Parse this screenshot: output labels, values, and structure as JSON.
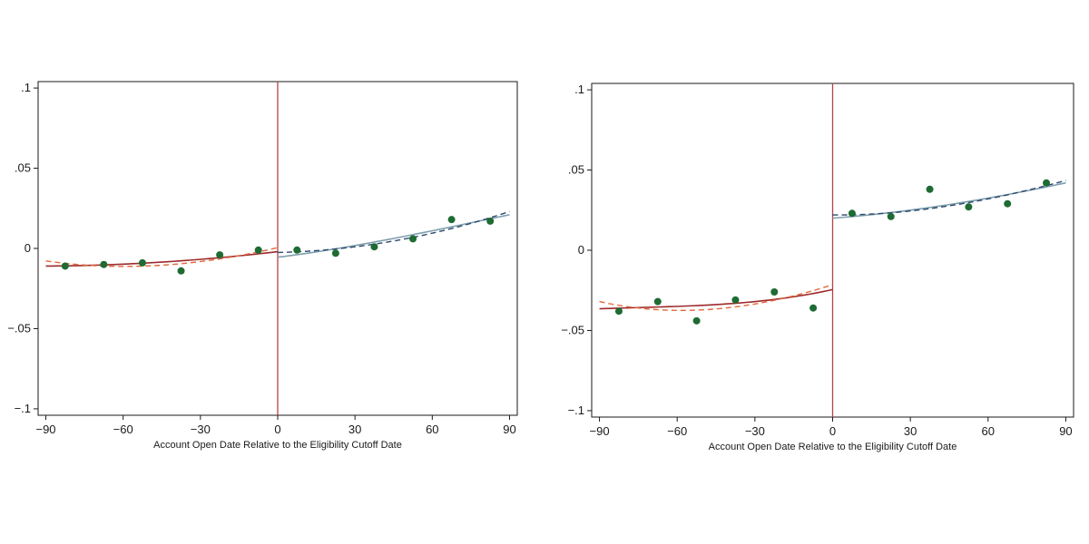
{
  "chart_data": [
    {
      "type": "scatter",
      "title": "",
      "xlabel": "Account Open Date Relative to the Eligibility Cutoff Date",
      "ylabel": "",
      "xlim": [
        -93,
        93
      ],
      "ylim": [
        -0.104,
        0.104
      ],
      "x_ticks": [
        -90,
        -60,
        -30,
        0,
        30,
        60,
        90
      ],
      "x_tick_labels": [
        "−90",
        "−60",
        "−30",
        "0",
        "30",
        "60",
        "90"
      ],
      "y_ticks": [
        0.1,
        0.05,
        0,
        -0.05,
        -0.1
      ],
      "y_tick_labels": [
        ".1",
        ".05",
        "0",
        "−.05",
        "−.1"
      ],
      "grid": false,
      "cutoff_x": 0,
      "points": {
        "x": [
          -82.5,
          -67.5,
          -52.5,
          -37.5,
          -22.5,
          -7.5,
          7.5,
          22.5,
          37.5,
          52.5,
          67.5,
          82.5
        ],
        "y": [
          -0.011,
          -0.01,
          -0.009,
          -0.014,
          -0.004,
          -0.001,
          -0.001,
          -0.003,
          0.001,
          0.006,
          0.018,
          0.017
        ]
      },
      "fits": [
        {
          "side": "left",
          "style": "solid",
          "x": [
            -90,
            -60,
            -30,
            0
          ],
          "y": [
            -0.011,
            -0.0098,
            -0.0068,
            -0.002
          ]
        },
        {
          "side": "left",
          "style": "dashed",
          "x": [
            -90,
            -60,
            -30,
            0
          ],
          "y": [
            -0.0078,
            -0.0112,
            -0.0082,
            0.0005
          ]
        },
        {
          "side": "right",
          "style": "solid",
          "x": [
            0,
            30,
            60,
            90
          ],
          "y": [
            -0.0055,
            0.0018,
            0.011,
            0.021
          ]
        },
        {
          "side": "right",
          "style": "dashed",
          "x": [
            0,
            30,
            60,
            90
          ],
          "y": [
            -0.0025,
            0.001,
            0.0095,
            0.023
          ]
        }
      ]
    },
    {
      "type": "scatter",
      "title": "",
      "xlabel": "Account Open Date Relative to the Eligibility Cutoff Date",
      "ylabel": "",
      "xlim": [
        -93,
        93
      ],
      "ylim": [
        -0.104,
        0.104
      ],
      "x_ticks": [
        -90,
        -60,
        -30,
        0,
        30,
        60,
        90
      ],
      "x_tick_labels": [
        "−90",
        "−60",
        "−30",
        "0",
        "30",
        "60",
        "90"
      ],
      "y_ticks": [
        0.1,
        0.05,
        0,
        -0.05,
        -0.1
      ],
      "y_tick_labels": [
        ".1",
        ".05",
        "0",
        "−.05",
        "−.1"
      ],
      "grid": false,
      "cutoff_x": 0,
      "points": {
        "x": [
          -82.5,
          -67.5,
          -52.5,
          -37.5,
          -22.5,
          -7.5,
          7.5,
          22.5,
          37.5,
          52.5,
          67.5,
          82.5
        ],
        "y": [
          -0.038,
          -0.032,
          -0.044,
          -0.031,
          -0.026,
          -0.036,
          0.023,
          0.021,
          0.038,
          0.027,
          0.029,
          0.042
        ]
      },
      "fits": [
        {
          "side": "left",
          "style": "solid",
          "x": [
            -90,
            -60,
            -30,
            0
          ],
          "y": [
            -0.0365,
            -0.035,
            -0.032,
            -0.0245
          ]
        },
        {
          "side": "left",
          "style": "dashed",
          "x": [
            -90,
            -60,
            -30,
            0
          ],
          "y": [
            -0.032,
            -0.0375,
            -0.0335,
            -0.0215
          ]
        },
        {
          "side": "right",
          "style": "solid",
          "x": [
            0,
            30,
            60,
            90
          ],
          "y": [
            0.02,
            0.025,
            0.0325,
            0.042
          ]
        },
        {
          "side": "right",
          "style": "dashed",
          "x": [
            0,
            30,
            60,
            90
          ],
          "y": [
            0.022,
            0.0245,
            0.032,
            0.0435
          ]
        }
      ]
    }
  ],
  "colors": {
    "points": "#1e6b33",
    "left_solid": "#9e2a2b",
    "left_dashed": "#e2673a",
    "right_solid": "#7f9eae",
    "right_dashed": "#2c4a6e",
    "cutoff": "#b3424a"
  }
}
